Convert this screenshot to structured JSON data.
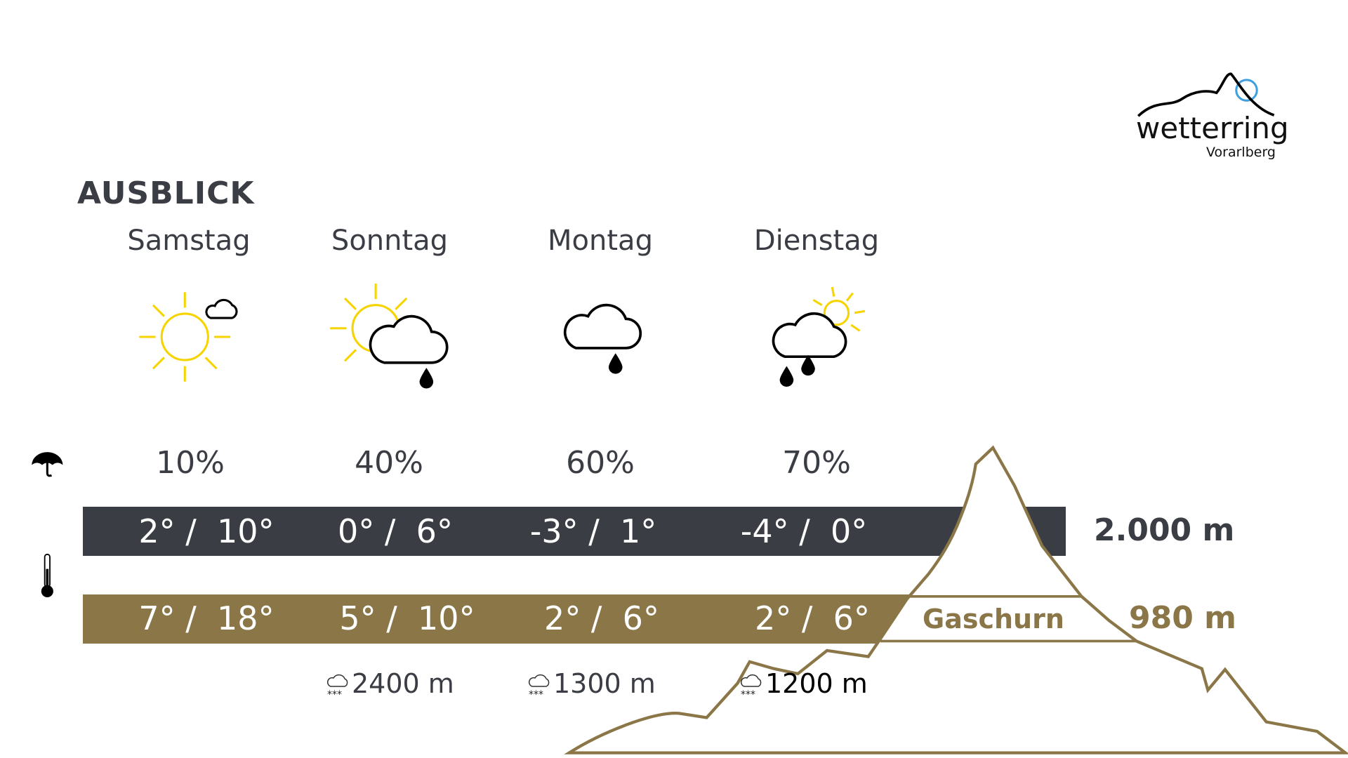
{
  "logo": {
    "name": "wetterring",
    "region": "Vorarlberg",
    "accent": "#3fa0e0"
  },
  "header": {
    "title": "AUSBLICK"
  },
  "colors": {
    "dark": "#3b3d44",
    "brown": "#8a7647",
    "sun": "#f5d400"
  },
  "days": [
    {
      "name": "Samstag",
      "icon": "sun-small-cloud-icon",
      "precip": "10%",
      "temp_2000": "2° /  10°",
      "temp_valley": "7° /  18°",
      "snowline": ""
    },
    {
      "name": "Sonntag",
      "icon": "sun-cloud-rain-icon",
      "precip": "40%",
      "temp_2000": "0° /  6°",
      "temp_valley": "5° /  10°",
      "snowline": "2400 m"
    },
    {
      "name": "Montag",
      "icon": "cloud-rain-icon",
      "precip": "60%",
      "temp_2000": "-3° /  1°",
      "temp_valley": "2° /  6°",
      "snowline": "1300 m"
    },
    {
      "name": "Dienstag",
      "icon": "cloud-heavy-rain-sun-icon",
      "precip": "70%",
      "temp_2000": "-4° /  0°",
      "temp_valley": "2° /  6°",
      "snowline": "1200 m"
    }
  ],
  "altitudes": {
    "high": "2.000 m",
    "low": "980 m",
    "location": "Gaschurn"
  }
}
